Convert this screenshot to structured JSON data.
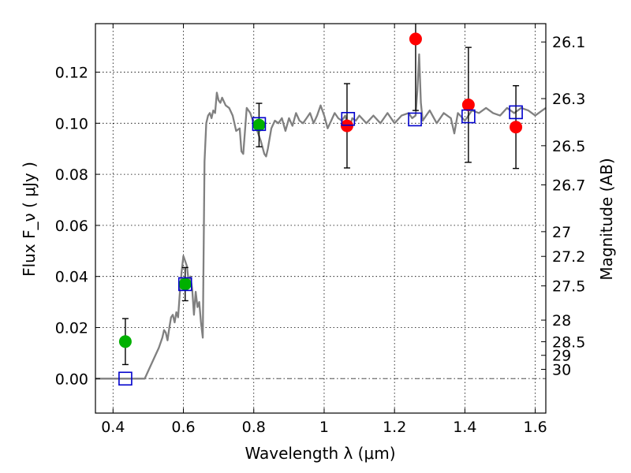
{
  "chart_data": {
    "type": "scatter",
    "xlabel": "Wavelength  λ (μm)",
    "ylabel": "Flux  F_ν  ( μJy )",
    "ylabel_right": "Magnitude (AB)",
    "xlim": [
      0.35,
      1.63
    ],
    "ylim": [
      -0.0135,
      0.139
    ],
    "grid": true,
    "x_ticks": [
      0.4,
      0.6,
      0.8,
      1.0,
      1.2,
      1.4,
      1.6
    ],
    "x_tick_labels": [
      "0.4",
      "0.6",
      "0.8",
      "1",
      "1.2",
      "1.4",
      "1.6"
    ],
    "y_ticks": [
      0.0,
      0.02,
      0.04,
      0.06,
      0.08,
      0.1,
      0.12
    ],
    "y_tick_labels": [
      "0.00",
      "0.02",
      "0.04",
      "0.06",
      "0.08",
      "0.10",
      "0.12"
    ],
    "mag_ticks": [
      26.1,
      26.3,
      26.5,
      26.7,
      27,
      27.2,
      27.5,
      28,
      28.5,
      29,
      30
    ],
    "mag_tick_labels": [
      "26.1",
      "26.3",
      "26.5",
      "26.7",
      "27",
      "27.2",
      "27.5",
      "28",
      "28.5",
      "29",
      "30"
    ],
    "series": [
      {
        "kind": "spectrum",
        "color": "#808080",
        "x": [
          0.35,
          0.49,
          0.5,
          0.52,
          0.53,
          0.54,
          0.545,
          0.55,
          0.555,
          0.56,
          0.565,
          0.57,
          0.575,
          0.58,
          0.585,
          0.59,
          0.595,
          0.6,
          0.605,
          0.61,
          0.615,
          0.62,
          0.625,
          0.63,
          0.635,
          0.64,
          0.645,
          0.65,
          0.655,
          0.66,
          0.665,
          0.67,
          0.675,
          0.68,
          0.685,
          0.69,
          0.695,
          0.7,
          0.705,
          0.71,
          0.72,
          0.73,
          0.74,
          0.75,
          0.76,
          0.765,
          0.77,
          0.78,
          0.79,
          0.8,
          0.81,
          0.82,
          0.83,
          0.835,
          0.84,
          0.85,
          0.86,
          0.87,
          0.88,
          0.89,
          0.9,
          0.91,
          0.92,
          0.93,
          0.94,
          0.95,
          0.96,
          0.97,
          0.98,
          0.99,
          1.0,
          1.01,
          1.02,
          1.03,
          1.04,
          1.05,
          1.06,
          1.07,
          1.08,
          1.09,
          1.1,
          1.12,
          1.14,
          1.16,
          1.18,
          1.2,
          1.22,
          1.24,
          1.25,
          1.26,
          1.265,
          1.27,
          1.275,
          1.28,
          1.29,
          1.3,
          1.32,
          1.34,
          1.36,
          1.37,
          1.38,
          1.4,
          1.42,
          1.44,
          1.46,
          1.48,
          1.5,
          1.52,
          1.54,
          1.56,
          1.58,
          1.6,
          1.62,
          1.63
        ],
        "y": [
          0.0,
          0.0,
          0.003,
          0.009,
          0.012,
          0.016,
          0.019,
          0.018,
          0.015,
          0.02,
          0.024,
          0.025,
          0.022,
          0.026,
          0.024,
          0.034,
          0.042,
          0.048,
          0.046,
          0.044,
          0.038,
          0.04,
          0.035,
          0.025,
          0.034,
          0.028,
          0.03,
          0.022,
          0.016,
          0.085,
          0.1,
          0.103,
          0.104,
          0.102,
          0.105,
          0.104,
          0.112,
          0.109,
          0.108,
          0.11,
          0.107,
          0.106,
          0.103,
          0.097,
          0.098,
          0.089,
          0.088,
          0.106,
          0.104,
          0.1,
          0.097,
          0.093,
          0.088,
          0.087,
          0.09,
          0.098,
          0.101,
          0.1,
          0.102,
          0.097,
          0.102,
          0.099,
          0.104,
          0.101,
          0.1,
          0.102,
          0.104,
          0.1,
          0.103,
          0.107,
          0.103,
          0.098,
          0.101,
          0.104,
          0.102,
          0.101,
          0.103,
          0.097,
          0.102,
          0.101,
          0.103,
          0.1,
          0.103,
          0.1,
          0.104,
          0.1,
          0.103,
          0.104,
          0.102,
          0.103,
          0.113,
          0.127,
          0.108,
          0.101,
          0.103,
          0.105,
          0.1,
          0.104,
          0.102,
          0.096,
          0.104,
          0.101,
          0.105,
          0.104,
          0.106,
          0.104,
          0.103,
          0.106,
          0.104,
          0.106,
          0.105,
          0.103,
          0.105,
          0.106
        ]
      },
      {
        "kind": "points",
        "color": "#00b000",
        "x": [
          0.435,
          0.605,
          0.815
        ],
        "y": [
          0.0145,
          0.037,
          0.0993
        ],
        "err": [
          0.009,
          0.0065,
          0.0085
        ]
      },
      {
        "kind": "points",
        "color": "#ff0000",
        "x": [
          1.065,
          1.26,
          1.41,
          1.545
        ],
        "y": [
          0.099,
          0.133,
          0.1072,
          0.0985
        ],
        "err": [
          0.0165,
          0.028,
          0.0225,
          0.0162
        ]
      },
      {
        "kind": "squares",
        "color": "#0000cc",
        "x": [
          0.435,
          0.605,
          0.815,
          1.068,
          1.258,
          1.41,
          1.545
        ],
        "y": [
          0.0,
          0.037,
          0.0997,
          0.1017,
          0.1015,
          0.1027,
          0.1043
        ]
      }
    ]
  }
}
